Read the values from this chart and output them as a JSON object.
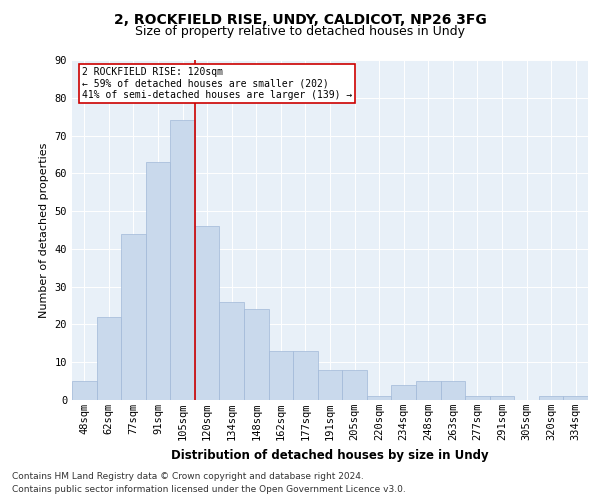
{
  "title1": "2, ROCKFIELD RISE, UNDY, CALDICOT, NP26 3FG",
  "title2": "Size of property relative to detached houses in Undy",
  "xlabel": "Distribution of detached houses by size in Undy",
  "ylabel": "Number of detached properties",
  "categories": [
    "48sqm",
    "62sqm",
    "77sqm",
    "91sqm",
    "105sqm",
    "120sqm",
    "134sqm",
    "148sqm",
    "162sqm",
    "177sqm",
    "191sqm",
    "205sqm",
    "220sqm",
    "234sqm",
    "248sqm",
    "263sqm",
    "277sqm",
    "291sqm",
    "305sqm",
    "320sqm",
    "334sqm"
  ],
  "values": [
    5,
    22,
    44,
    63,
    74,
    46,
    26,
    24,
    13,
    13,
    8,
    8,
    1,
    4,
    5,
    5,
    1,
    1,
    0,
    1,
    1
  ],
  "bar_color": "#c9d9ec",
  "bar_edge_color": "#a0b8d8",
  "vline_index": 5,
  "vline_color": "#cc0000",
  "box_text_line1": "2 ROCKFIELD RISE: 120sqm",
  "box_text_line2": "← 59% of detached houses are smaller (202)",
  "box_text_line3": "41% of semi-detached houses are larger (139) →",
  "box_color": "#cc0000",
  "footnote1": "Contains HM Land Registry data © Crown copyright and database right 2024.",
  "footnote2": "Contains public sector information licensed under the Open Government Licence v3.0.",
  "ylim": [
    0,
    90
  ],
  "yticks": [
    0,
    10,
    20,
    30,
    40,
    50,
    60,
    70,
    80,
    90
  ],
  "bg_color": "#e8f0f8",
  "title1_fontsize": 10,
  "title2_fontsize": 9,
  "xlabel_fontsize": 8.5,
  "ylabel_fontsize": 8,
  "tick_fontsize": 7.5,
  "footnote_fontsize": 6.5
}
